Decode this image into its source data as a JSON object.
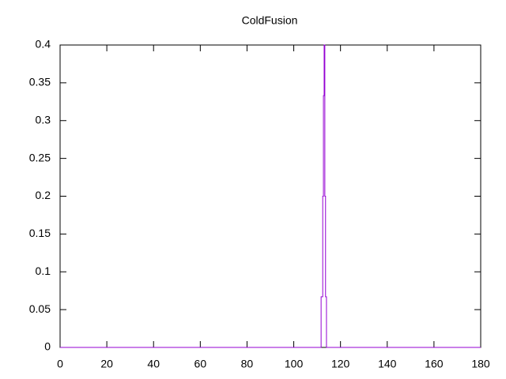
{
  "chart_data": {
    "type": "line",
    "title": "ColdFusion",
    "x": [
      0,
      111.7,
      111.7,
      112.4,
      112.4,
      112.7,
      112.7,
      113.0,
      113.0,
      113.3,
      113.3,
      113.6,
      113.6,
      114.0,
      114.0,
      180
    ],
    "series": [
      {
        "color": "#9400d3",
        "values": [
          0,
          0,
          0.067,
          0.067,
          0.2,
          0.2,
          0.333,
          0.333,
          0.4,
          0.4,
          0.2,
          0.2,
          0.067,
          0.067,
          0,
          0
        ]
      }
    ],
    "xlim": [
      0,
      180
    ],
    "xticks": [
      0,
      20,
      40,
      60,
      80,
      100,
      120,
      140,
      160,
      180
    ],
    "ylim": [
      0,
      0.4
    ],
    "yticks": [
      0,
      0.05,
      0.1,
      0.15,
      0.2,
      0.25,
      0.3,
      0.35,
      0.4
    ],
    "grid": false
  }
}
